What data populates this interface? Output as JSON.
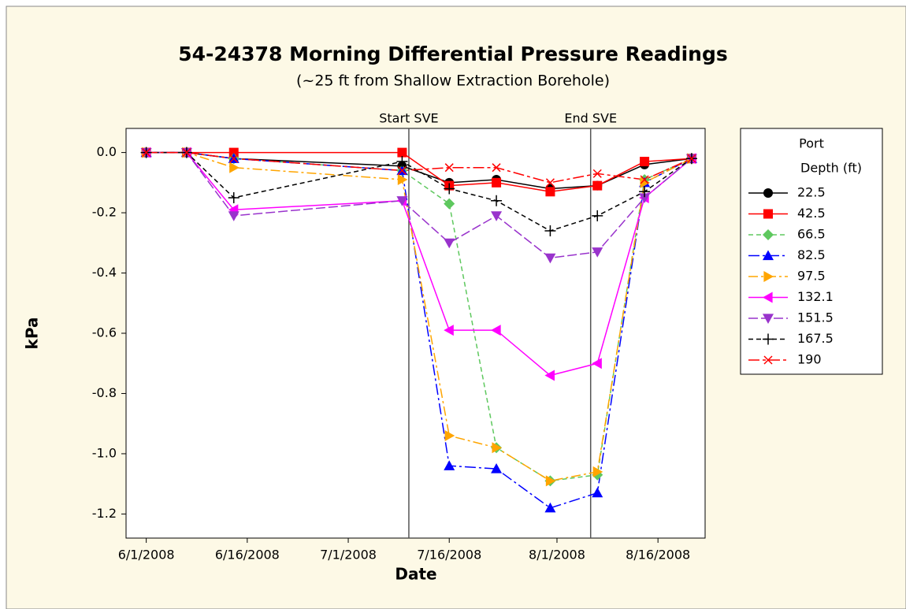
{
  "chart_data": {
    "type": "line",
    "title": "54-24378 Morning Differential Pressure Readings",
    "subtitle": "(~25 ft from Shallow Extraction Borehole)",
    "x_label": "Date",
    "y_label": "kPa",
    "legend_title": [
      "Port",
      "Depth (ft)"
    ],
    "legend": "right",
    "x": [
      "2008-06-01",
      "2008-06-07",
      "2008-06-14",
      "2008-07-09",
      "2008-07-16",
      "2008-07-23",
      "2008-07-31",
      "2008-08-07",
      "2008-08-14",
      "2008-08-21"
    ],
    "xlim": [
      "2008-05-29",
      "2008-08-23"
    ],
    "xticks": [
      {
        "value": "2008-06-01",
        "label": "6/1/2008"
      },
      {
        "value": "2008-06-16",
        "label": "6/16/2008"
      },
      {
        "value": "2008-07-01",
        "label": "7/1/2008"
      },
      {
        "value": "2008-07-16",
        "label": "7/16/2008"
      },
      {
        "value": "2008-08-01",
        "label": "8/1/2008"
      },
      {
        "value": "2008-08-16",
        "label": "8/16/2008"
      }
    ],
    "ylim": [
      -1.28,
      0.08
    ],
    "yticks": [
      {
        "value": 0,
        "label": "0.0"
      },
      -0.2,
      -0.4,
      -0.6,
      -0.8,
      {
        "value": -1,
        "label": "-1.0"
      },
      -1.2
    ],
    "vlines": [
      {
        "x": "2008-07-10",
        "label": "Start SVE"
      },
      {
        "x": "2008-08-06",
        "label": "End SVE"
      }
    ],
    "series": [
      {
        "name": "22.5",
        "color": "#000000",
        "marker": "circle",
        "dash": "none",
        "values": [
          0,
          0,
          -0.02,
          -0.045,
          -0.1,
          -0.09,
          -0.12,
          -0.11,
          -0.04,
          -0.02
        ]
      },
      {
        "name": "42.5",
        "color": "#ff0000",
        "marker": "square",
        "dash": "none",
        "values": [
          0,
          0,
          0,
          0,
          -0.11,
          -0.1,
          -0.13,
          -0.11,
          -0.03,
          -0.02
        ]
      },
      {
        "name": "66.5",
        "color": "#5ec85e",
        "marker": "diamond",
        "dash": "6,4",
        "values": [
          0,
          0,
          -0.02,
          -0.06,
          -0.17,
          -0.98,
          -1.09,
          -1.07,
          -0.09,
          -0.02
        ]
      },
      {
        "name": "82.5",
        "color": "#0000ff",
        "marker": "triangle-up",
        "dash": "14,4,3,4",
        "values": [
          0,
          0,
          -0.02,
          -0.06,
          -1.04,
          -1.05,
          -1.18,
          -1.13,
          -0.1,
          -0.02
        ]
      },
      {
        "name": "97.5",
        "color": "#ffa500",
        "marker": "triangle-right",
        "dash": "12,4,3,4",
        "values": [
          0,
          0,
          -0.05,
          -0.09,
          -0.94,
          -0.98,
          -1.09,
          -1.06,
          -0.1,
          -0.02
        ]
      },
      {
        "name": "132.1",
        "color": "#ff00ff",
        "marker": "triangle-left",
        "dash": "none",
        "values": [
          0,
          0,
          -0.19,
          -0.16,
          -0.59,
          -0.59,
          -0.74,
          -0.7,
          -0.15,
          -0.02
        ]
      },
      {
        "name": "151.5",
        "color": "#9933cc",
        "marker": "triangle-down",
        "dash": "12,4",
        "values": [
          0,
          0,
          -0.21,
          -0.16,
          -0.3,
          -0.21,
          -0.35,
          -0.33,
          -0.15,
          -0.02
        ]
      },
      {
        "name": "167.5",
        "color": "#000000",
        "marker": "plus",
        "dash": "6,4",
        "values": [
          0,
          0,
          -0.15,
          -0.03,
          -0.12,
          -0.16,
          -0.26,
          -0.21,
          -0.13,
          -0.02
        ]
      },
      {
        "name": "190",
        "color": "#ff0000",
        "marker": "cross",
        "dash": "14,4,4,4",
        "values": [
          0,
          0,
          -0.02,
          -0.06,
          -0.05,
          -0.05,
          -0.1,
          -0.07,
          -0.09,
          -0.02
        ]
      }
    ]
  }
}
